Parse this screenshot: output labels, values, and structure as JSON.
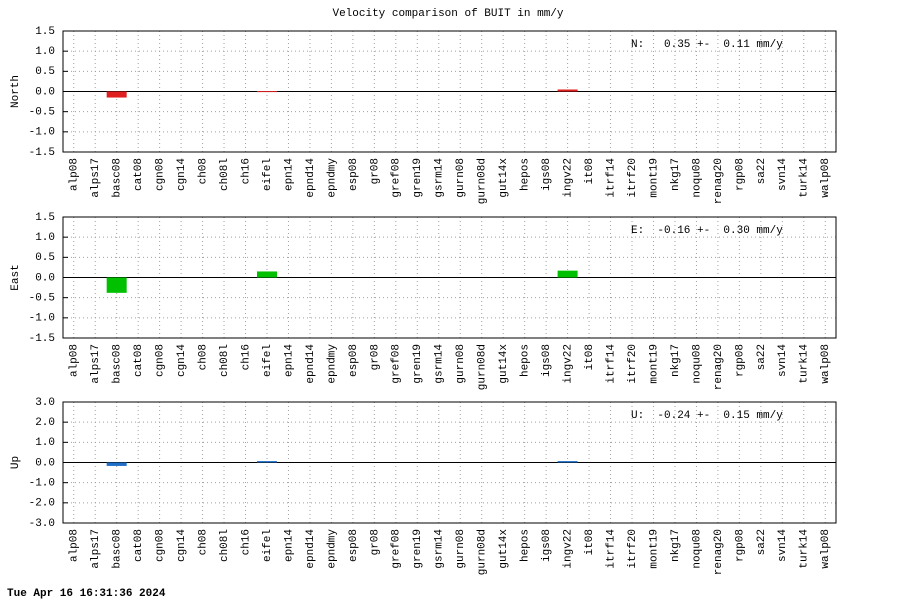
{
  "title": "Velocity comparison of BUIT in mm/y",
  "timestamp": "Tue Apr 16 16:31:36 2024",
  "chart_data": [
    {
      "type": "bar",
      "ylabel": "North",
      "annotation": "N:   0.35 +-  0.11 mm/y",
      "color": "#e02020",
      "grid": true,
      "categories": [
        "alp08",
        "alps17",
        "basc08",
        "cat08",
        "cgn08",
        "cgn14",
        "ch08",
        "ch08l",
        "ch16",
        "eifel",
        "epn14",
        "epnd14",
        "epndmy",
        "esp08",
        "gr08",
        "gref08",
        "gren19",
        "gsrm14",
        "gurn08",
        "gurn08d",
        "gut14x",
        "hepos",
        "igs08",
        "ingv22",
        "it08",
        "itrf14",
        "itrf20",
        "mont19",
        "nkg17",
        "noqu08",
        "renag20",
        "rgp08",
        "sa22",
        "svn14",
        "turk14",
        "walp08"
      ],
      "values": [
        null,
        null,
        -0.15,
        null,
        null,
        null,
        null,
        null,
        null,
        0.01,
        null,
        null,
        null,
        null,
        null,
        null,
        null,
        null,
        null,
        null,
        null,
        null,
        null,
        0.05,
        null,
        null,
        null,
        null,
        null,
        null,
        null,
        null,
        null,
        null,
        null,
        null
      ],
      "ylim": [
        -1.5,
        1.5
      ],
      "yticks": [
        1.5,
        {
          "value": 1.0,
          "label": "1.0"
        },
        0.5,
        {
          "value": 0,
          "label": "0.0"
        },
        -0.5,
        {
          "value": -1.0,
          "label": "-1.0"
        },
        -1.5
      ]
    },
    {
      "type": "bar",
      "ylabel": "East",
      "annotation": "E:  -0.16 +-  0.30 mm/y",
      "color": "#00c000",
      "grid": true,
      "categories": [
        "alp08",
        "alps17",
        "basc08",
        "cat08",
        "cgn08",
        "cgn14",
        "ch08",
        "ch08l",
        "ch16",
        "eifel",
        "epn14",
        "epnd14",
        "epndmy",
        "esp08",
        "gr08",
        "gref08",
        "gren19",
        "gsrm14",
        "gurn08",
        "gurn08d",
        "gut14x",
        "hepos",
        "igs08",
        "ingv22",
        "it08",
        "itrf14",
        "itrf20",
        "mont19",
        "nkg17",
        "noqu08",
        "renag20",
        "rgp08",
        "sa22",
        "svn14",
        "turk14",
        "walp08"
      ],
      "values": [
        null,
        null,
        -0.38,
        null,
        null,
        null,
        null,
        null,
        null,
        0.15,
        null,
        null,
        null,
        null,
        null,
        null,
        null,
        null,
        null,
        null,
        null,
        null,
        null,
        0.17,
        null,
        null,
        null,
        null,
        null,
        null,
        null,
        null,
        null,
        null,
        null,
        null
      ],
      "ylim": [
        -1.5,
        1.5
      ],
      "yticks": [
        1.5,
        {
          "value": 1.0,
          "label": "1.0"
        },
        0.5,
        {
          "value": 0,
          "label": "0.0"
        },
        -0.5,
        {
          "value": -1.0,
          "label": "-1.0"
        },
        -1.5
      ]
    },
    {
      "type": "bar",
      "ylabel": "Up",
      "annotation": "U:  -0.24 +-  0.15 mm/y",
      "color": "#1f6fc8",
      "grid": true,
      "categories": [
        "alp08",
        "alps17",
        "basc08",
        "cat08",
        "cgn08",
        "cgn14",
        "ch08",
        "ch08l",
        "ch16",
        "eifel",
        "epn14",
        "epnd14",
        "epndmy",
        "esp08",
        "gr08",
        "gref08",
        "gren19",
        "gsrm14",
        "gurn08",
        "gurn08d",
        "gut14x",
        "hepos",
        "igs08",
        "ingv22",
        "it08",
        "itrf14",
        "itrf20",
        "mont19",
        "nkg17",
        "noqu08",
        "renag20",
        "rgp08",
        "sa22",
        "svn14",
        "turk14",
        "walp08"
      ],
      "values": [
        null,
        null,
        -0.17,
        null,
        null,
        null,
        null,
        null,
        null,
        0.07,
        null,
        null,
        null,
        null,
        null,
        null,
        null,
        null,
        null,
        null,
        null,
        null,
        null,
        0.07,
        null,
        null,
        null,
        null,
        null,
        null,
        null,
        null,
        null,
        null,
        null,
        null
      ],
      "ylim": [
        -3.0,
        3.0
      ],
      "yticks": [
        {
          "value": 3.0,
          "label": "3.0"
        },
        {
          "value": 2.0,
          "label": "2.0"
        },
        {
          "value": 1.0,
          "label": "1.0"
        },
        {
          "value": 0,
          "label": "0.0"
        },
        {
          "value": -1.0,
          "label": "-1.0"
        },
        {
          "value": -2.0,
          "label": "-2.0"
        },
        {
          "value": -3.0,
          "label": "-3.0"
        }
      ]
    }
  ]
}
